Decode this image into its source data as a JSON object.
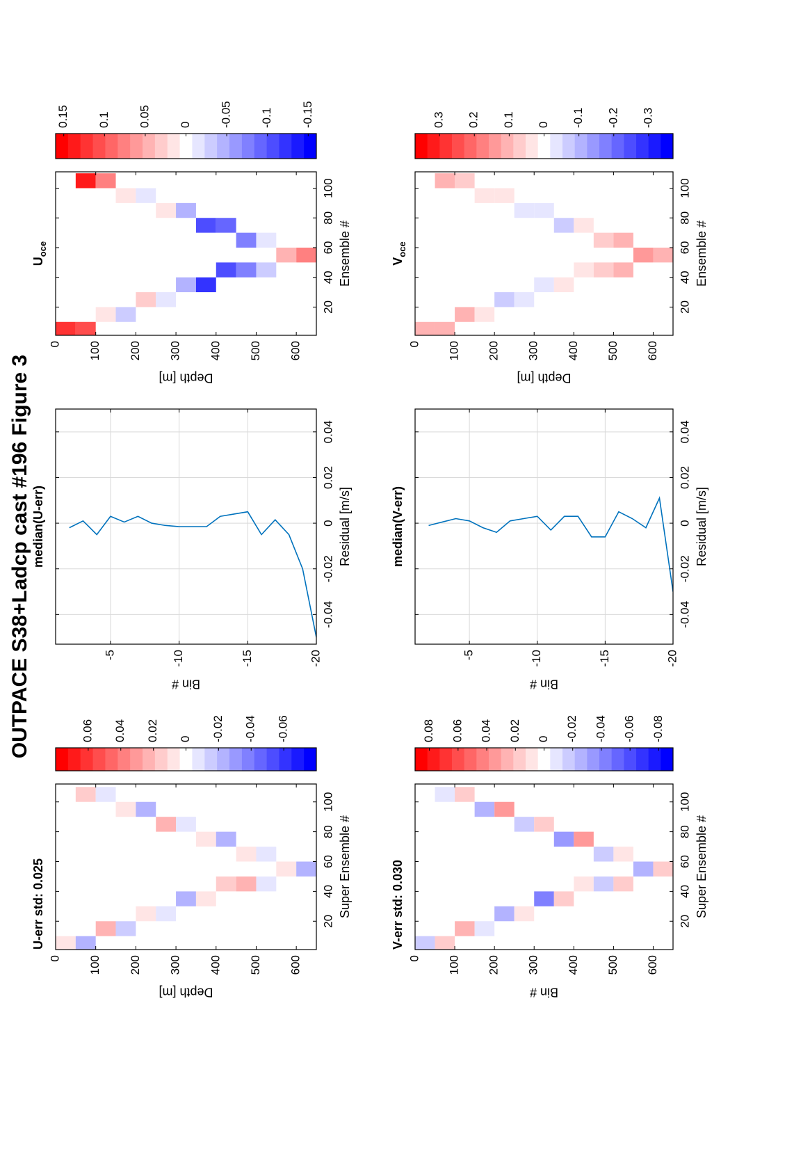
{
  "title": "OUTPACE S38+Ladcp cast #196  Figure 3",
  "chart_data": [
    {
      "type": "heatmap",
      "title": "U-err std: 0.025",
      "xlabel": "Super Ensemble #",
      "ylabel": "Depth [m]",
      "x": [
        5,
        15,
        25,
        35,
        45,
        55,
        65,
        75,
        85,
        95,
        105
      ],
      "y": [
        25,
        75,
        125,
        175,
        225,
        275,
        325,
        375,
        425,
        475,
        525,
        575,
        625
      ],
      "z": [
        [
          0.01,
          null,
          null,
          null,
          null,
          null,
          null,
          null,
          null,
          null,
          null
        ],
        [
          -0.02,
          null,
          null,
          null,
          null,
          null,
          null,
          null,
          null,
          null,
          0.015
        ],
        [
          null,
          0.02,
          null,
          null,
          null,
          null,
          null,
          null,
          null,
          null,
          -0.01
        ],
        [
          null,
          -0.015,
          null,
          null,
          null,
          null,
          null,
          null,
          null,
          0.005,
          null
        ],
        [
          null,
          null,
          0.01,
          null,
          null,
          null,
          null,
          null,
          null,
          -0.02,
          null
        ],
        [
          null,
          null,
          -0.01,
          null,
          null,
          null,
          null,
          null,
          0.02,
          null,
          null
        ],
        [
          null,
          null,
          null,
          -0.025,
          null,
          null,
          null,
          null,
          -0.005,
          null,
          null
        ],
        [
          null,
          null,
          null,
          0.005,
          null,
          null,
          null,
          0.01,
          null,
          null,
          null
        ],
        [
          null,
          null,
          null,
          null,
          0.015,
          null,
          null,
          -0.02,
          null,
          null,
          null
        ],
        [
          null,
          null,
          null,
          null,
          0.02,
          null,
          0.005,
          null,
          null,
          null,
          null
        ],
        [
          null,
          null,
          null,
          null,
          -0.005,
          null,
          -0.01,
          null,
          null,
          null,
          null
        ],
        [
          null,
          null,
          null,
          null,
          null,
          0.01,
          null,
          null,
          null,
          null,
          null
        ],
        [
          null,
          null,
          null,
          null,
          null,
          -0.02,
          null,
          null,
          null,
          null,
          null
        ]
      ],
      "xlim": [
        1,
        112
      ],
      "ylim": [
        0,
        650
      ],
      "y_reversed": true,
      "xticks": [
        20,
        40,
        60,
        80,
        100
      ],
      "yticks": [
        0,
        100,
        200,
        300,
        400,
        500,
        600
      ],
      "colormap": [
        "#ff0000",
        "#ffffff",
        "#0000ff"
      ],
      "clim": [
        -0.08,
        0.08
      ],
      "cticks": [
        0.06,
        0.04,
        0.02,
        0,
        -0.02,
        -0.04,
        -0.06
      ]
    },
    {
      "type": "line",
      "title": "median(U-err)",
      "xlabel": "Residual [m/s]",
      "ylabel": "Bin #",
      "series": [
        {
          "color": "#0072bd",
          "x": [
            -0.002,
            0.001,
            -0.005,
            0.003,
            0.0005,
            0.003,
            0,
            -0.001,
            -0.0015,
            -0.0015,
            -0.0015,
            0.003,
            0.004,
            0.005,
            -0.005,
            0.0015,
            -0.005,
            -0.02,
            -0.05
          ],
          "y": [
            -2,
            -3,
            -4,
            -5,
            -6,
            -7,
            -8,
            -9,
            -10,
            -11,
            -12,
            -13,
            -14,
            -15,
            -16,
            -17,
            -18,
            -19,
            -20
          ]
        }
      ],
      "xlim": [
        -0.053,
        0.05
      ],
      "ylim": [
        -20,
        -1
      ],
      "xticks": [
        -0.04,
        -0.02,
        0,
        0.02,
        0.04
      ],
      "yticks": [
        -5,
        -10,
        -15,
        -20
      ],
      "grid": true
    },
    {
      "type": "heatmap",
      "title": "U",
      "title_subscript": "oce",
      "xlabel": "Ensemble #",
      "ylabel": "Depth [m]",
      "x": [
        5,
        15,
        25,
        35,
        45,
        55,
        65,
        75,
        85,
        95,
        105
      ],
      "y": [
        25,
        75,
        125,
        175,
        225,
        275,
        325,
        375,
        425,
        475,
        525,
        575,
        625
      ],
      "z": [
        [
          0.12,
          null,
          null,
          null,
          null,
          null,
          null,
          null,
          null,
          null,
          null
        ],
        [
          0.1,
          null,
          null,
          null,
          null,
          null,
          null,
          null,
          null,
          null,
          0.13
        ],
        [
          null,
          0.02,
          null,
          null,
          null,
          null,
          null,
          null,
          null,
          null,
          0.08
        ],
        [
          null,
          -0.03,
          null,
          null,
          null,
          null,
          null,
          null,
          null,
          0.02,
          null
        ],
        [
          null,
          null,
          0.03,
          null,
          null,
          null,
          null,
          null,
          null,
          -0.02,
          null
        ],
        [
          null,
          null,
          -0.02,
          null,
          null,
          null,
          null,
          null,
          0.01,
          null,
          null
        ],
        [
          null,
          null,
          null,
          -0.05,
          null,
          null,
          null,
          null,
          -0.04,
          null,
          null
        ],
        [
          null,
          null,
          null,
          -0.12,
          null,
          null,
          null,
          -0.1,
          null,
          null,
          null
        ],
        [
          null,
          null,
          null,
          null,
          -0.11,
          null,
          null,
          -0.09,
          null,
          null,
          null
        ],
        [
          null,
          null,
          null,
          null,
          -0.08,
          null,
          -0.07,
          null,
          null,
          null,
          null
        ],
        [
          null,
          null,
          null,
          null,
          -0.03,
          null,
          -0.02,
          null,
          null,
          null,
          null
        ],
        [
          null,
          null,
          null,
          null,
          null,
          0.05,
          null,
          null,
          null,
          null,
          null
        ],
        [
          null,
          null,
          null,
          null,
          null,
          0.08,
          null,
          null,
          null,
          null,
          null
        ]
      ],
      "xlim": [
        1,
        111
      ],
      "ylim": [
        0,
        650
      ],
      "y_reversed": true,
      "xticks": [
        20,
        40,
        60,
        80,
        100
      ],
      "yticks": [
        0,
        100,
        200,
        300,
        400,
        500,
        600
      ],
      "colormap": [
        "#ff0000",
        "#ffffff",
        "#0000ff"
      ],
      "clim": [
        -0.16,
        0.16
      ],
      "cticks": [
        0.15,
        0.1,
        0.05,
        0,
        -0.05,
        -0.1,
        -0.15
      ]
    },
    {
      "type": "heatmap",
      "title": "V-err std: 0.030",
      "xlabel": "Super Ensemble #",
      "ylabel": "Bin #",
      "x": [
        5,
        15,
        25,
        35,
        45,
        55,
        65,
        75,
        85,
        95,
        105
      ],
      "y": [
        25,
        75,
        125,
        175,
        225,
        275,
        325,
        375,
        425,
        475,
        525,
        575,
        625
      ],
      "z": [
        [
          -0.015,
          null,
          null,
          null,
          null,
          null,
          null,
          null,
          null,
          null,
          null
        ],
        [
          0.02,
          null,
          null,
          null,
          null,
          null,
          null,
          null,
          null,
          null,
          -0.01
        ],
        [
          null,
          0.025,
          null,
          null,
          null,
          null,
          null,
          null,
          null,
          null,
          0.02
        ],
        [
          null,
          -0.01,
          null,
          null,
          null,
          null,
          null,
          null,
          null,
          -0.025,
          null
        ],
        [
          null,
          null,
          -0.03,
          null,
          null,
          null,
          null,
          null,
          null,
          0.03,
          null
        ],
        [
          null,
          null,
          0.01,
          null,
          null,
          null,
          null,
          null,
          -0.02,
          null,
          null
        ],
        [
          null,
          null,
          null,
          -0.04,
          null,
          null,
          null,
          null,
          0.015,
          null,
          null
        ],
        [
          null,
          null,
          null,
          0.02,
          null,
          null,
          null,
          -0.035,
          null,
          null,
          null
        ],
        [
          null,
          null,
          null,
          null,
          0.01,
          null,
          null,
          0.03,
          null,
          null,
          null
        ],
        [
          null,
          null,
          null,
          null,
          -0.015,
          null,
          -0.02,
          null,
          null,
          null,
          null
        ],
        [
          null,
          null,
          null,
          null,
          0.02,
          null,
          0.01,
          null,
          null,
          null,
          null
        ],
        [
          null,
          null,
          null,
          null,
          null,
          -0.03,
          null,
          null,
          null,
          null,
          null
        ],
        [
          null,
          null,
          null,
          null,
          null,
          0.015,
          null,
          null,
          null,
          null,
          null
        ]
      ],
      "xlim": [
        1,
        112
      ],
      "ylim": [
        0,
        650
      ],
      "y_reversed": true,
      "xticks": [
        20,
        40,
        60,
        80,
        100
      ],
      "yticks": [
        0,
        100,
        200,
        300,
        400,
        500,
        600
      ],
      "colormap": [
        "#ff0000",
        "#ffffff",
        "#0000ff"
      ],
      "clim": [
        -0.09,
        0.09
      ],
      "cticks": [
        0.08,
        0.06,
        0.04,
        0.02,
        0,
        -0.02,
        -0.04,
        -0.06,
        -0.08
      ]
    },
    {
      "type": "line",
      "title": "median(V-err)",
      "xlabel": "Residual [m/s]",
      "ylabel": "Bin #",
      "series": [
        {
          "color": "#0072bd",
          "x": [
            -0.001,
            0.0005,
            0.002,
            0.001,
            -0.002,
            -0.004,
            0.001,
            0.002,
            0.003,
            -0.003,
            0.003,
            0.003,
            -0.006,
            -0.006,
            0.005,
            0.002,
            -0.002,
            0.011,
            -0.03
          ],
          "y": [
            -2,
            -3,
            -4,
            -5,
            -6,
            -7,
            -8,
            -9,
            -10,
            -11,
            -12,
            -13,
            -14,
            -15,
            -16,
            -17,
            -18,
            -19,
            -20
          ]
        }
      ],
      "xlim": [
        -0.053,
        0.05
      ],
      "ylim": [
        -20,
        -1
      ],
      "xticks": [
        -0.04,
        -0.02,
        0,
        0.02,
        0.04
      ],
      "yticks": [
        -5,
        -10,
        -15,
        -20
      ],
      "grid": true
    },
    {
      "type": "heatmap",
      "title": "V",
      "title_subscript": "oce",
      "xlabel": "Ensemble #",
      "ylabel": "Depth [m]",
      "x": [
        5,
        15,
        25,
        35,
        45,
        55,
        65,
        75,
        85,
        95,
        105
      ],
      "y": [
        25,
        75,
        125,
        175,
        225,
        275,
        325,
        375,
        425,
        475,
        525,
        575,
        625
      ],
      "z": [
        [
          0.1,
          null,
          null,
          null,
          null,
          null,
          null,
          null,
          null,
          null,
          null
        ],
        [
          0.12,
          null,
          null,
          null,
          null,
          null,
          null,
          null,
          null,
          null,
          0.1
        ],
        [
          null,
          0.1,
          null,
          null,
          null,
          null,
          null,
          null,
          null,
          null,
          0.08
        ],
        [
          null,
          0.03,
          null,
          null,
          null,
          null,
          null,
          null,
          null,
          0.05,
          null
        ],
        [
          null,
          null,
          -0.08,
          null,
          null,
          null,
          null,
          null,
          null,
          0.02,
          null
        ],
        [
          null,
          null,
          -0.03,
          null,
          null,
          null,
          null,
          null,
          -0.05,
          null,
          null
        ],
        [
          null,
          null,
          null,
          -0.02,
          null,
          null,
          null,
          null,
          -0.03,
          null,
          null
        ],
        [
          null,
          null,
          null,
          0.02,
          null,
          null,
          null,
          -0.06,
          null,
          null,
          null
        ],
        [
          null,
          null,
          null,
          null,
          0.03,
          null,
          null,
          0.04,
          null,
          null,
          null
        ],
        [
          null,
          null,
          null,
          null,
          0.08,
          null,
          0.06,
          null,
          null,
          null,
          null
        ],
        [
          null,
          null,
          null,
          null,
          0.1,
          null,
          0.1,
          null,
          null,
          null,
          null
        ],
        [
          null,
          null,
          null,
          null,
          null,
          0.15,
          null,
          null,
          null,
          null,
          null
        ],
        [
          null,
          null,
          null,
          null,
          null,
          0.12,
          null,
          null,
          null,
          null,
          null
        ]
      ],
      "xlim": [
        1,
        111
      ],
      "ylim": [
        0,
        650
      ],
      "y_reversed": true,
      "xticks": [
        20,
        40,
        60,
        80,
        100
      ],
      "yticks": [
        0,
        100,
        200,
        300,
        400,
        500,
        600
      ],
      "colormap": [
        "#ff0000",
        "#ffffff",
        "#0000ff"
      ],
      "clim": [
        -0.37,
        0.37
      ],
      "cticks": [
        0.3,
        0.2,
        0.1,
        0,
        -0.1,
        -0.2,
        -0.3
      ]
    }
  ]
}
